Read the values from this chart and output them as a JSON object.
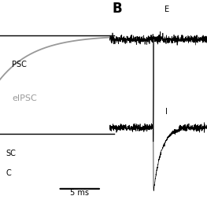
{
  "panel_B_label": "B",
  "label_E": "E",
  "label_I": "I",
  "scalebar_text": "5 ms",
  "text_eIPSC": "eIPSC",
  "left_labels_top": [
    "PSC",
    "PSC"
  ],
  "left_labels_bot": [
    "SC",
    "C"
  ],
  "gray_color": "#999999",
  "black_color": "#111111"
}
